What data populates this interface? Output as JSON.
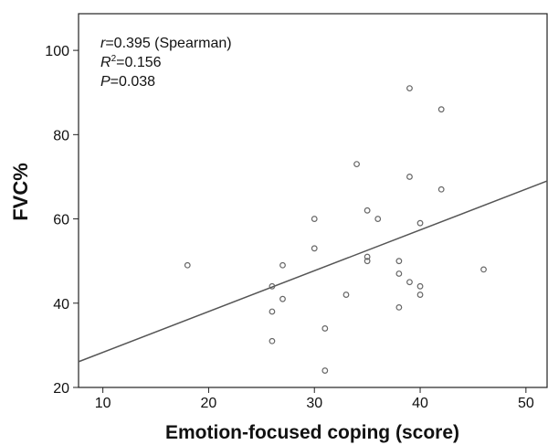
{
  "chart_data": {
    "type": "scatter",
    "xlabel": "Emotion-focused coping (score)",
    "ylabel": "FVC%",
    "annotations": [
      {
        "symbol": "r",
        "text": "=0.395 (Spearman)"
      },
      {
        "symbol": "R",
        "sup": "2",
        "text": "=0.156"
      },
      {
        "symbol": "P",
        "text": "=0.038"
      }
    ],
    "x": [
      18,
      26,
      26,
      26,
      27,
      27,
      30,
      30,
      31,
      31,
      33,
      34,
      35,
      35,
      35,
      36,
      38,
      38,
      38,
      39,
      39,
      39,
      40,
      40,
      40,
      42,
      42,
      46
    ],
    "values": [
      49,
      44,
      38,
      31,
      49,
      41,
      60,
      53,
      34,
      24,
      42,
      73,
      62,
      51,
      50,
      60,
      50,
      47,
      39,
      91,
      70,
      45,
      59,
      44,
      42,
      86,
      67,
      48
    ],
    "color": "#666666",
    "fit": {
      "x": [
        7.7,
        52
      ],
      "y": [
        26.1,
        69
      ],
      "color": "#555555"
    },
    "xlim": [
      7.7,
      52
    ],
    "ylim": [
      20,
      108.7
    ],
    "xticks": [
      10,
      20,
      30,
      40,
      50
    ],
    "yticks": [
      20,
      40,
      60,
      80,
      100
    ],
    "grid": false
  }
}
